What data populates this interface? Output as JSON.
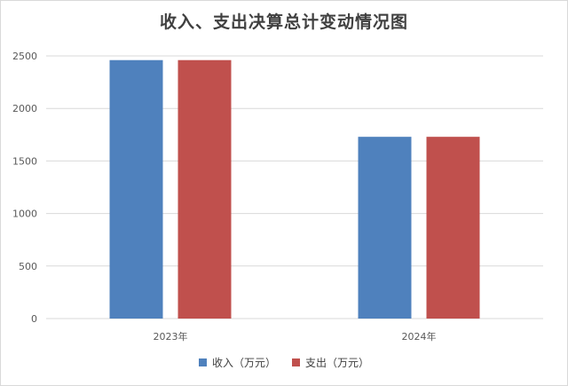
{
  "chart_data": {
    "type": "bar",
    "title": "收入、支出决算总计变动情况图",
    "categories": [
      "2023年",
      "2024年"
    ],
    "series": [
      {
        "name": "收入（万元）",
        "values": [
          2460,
          1730
        ],
        "color": "#4f81bd"
      },
      {
        "name": "支出（万元）",
        "values": [
          2460,
          1730
        ],
        "color": "#c0504d"
      }
    ],
    "yticks": [
      "0",
      "500",
      "1000",
      "1500",
      "2000",
      "2500"
    ],
    "ylim": [
      0,
      2500
    ],
    "xlabel": "",
    "ylabel": "",
    "grid": true,
    "legend": "bottom"
  }
}
